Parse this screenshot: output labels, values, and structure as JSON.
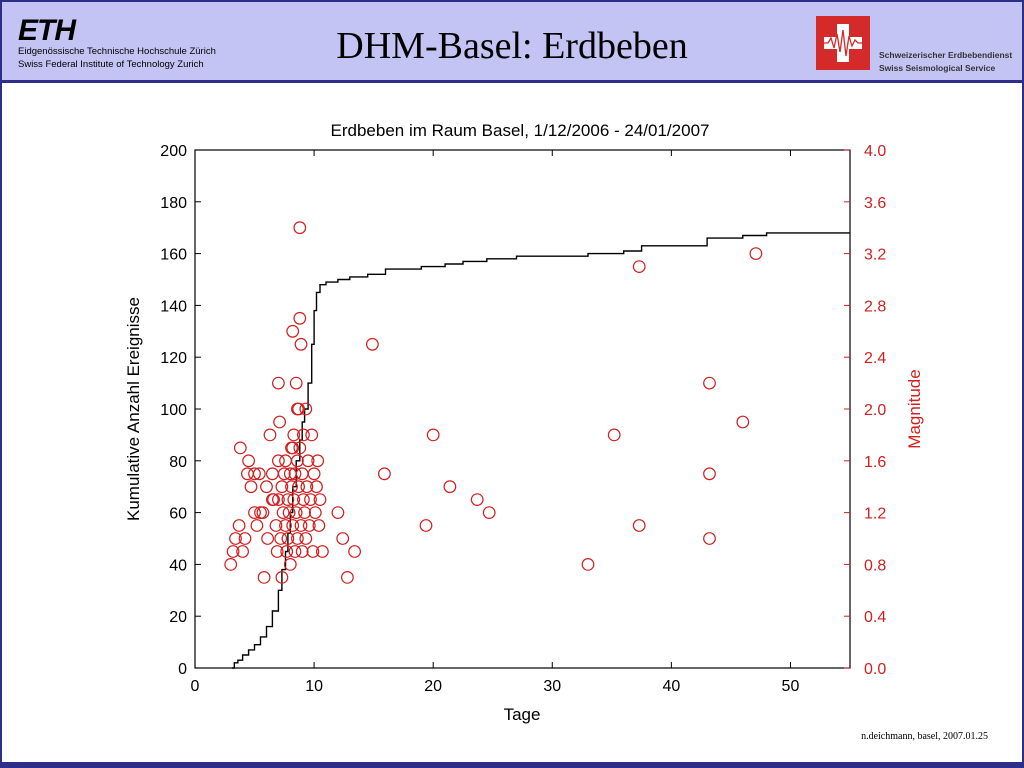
{
  "header": {
    "eth_logo": "ETH",
    "eth_line1": "Eidgenössische Technische Hochschule Zürich",
    "eth_line2": "Swiss Federal Institute of Technology Zurich",
    "title": "DHM-Basel: Erdbeben",
    "sed_line1": "Schweizerischer Erdbebendienst",
    "sed_line2": "Swiss Seismological Service"
  },
  "footer": {
    "text": "n.deichmann, basel, 2007.01.25"
  },
  "colors": {
    "header_bg": "#c4c4f4",
    "border": "#2d2d8a",
    "magnitude": "#d02020",
    "cumulative": "#000000"
  },
  "chart_data": {
    "type": "scatter",
    "title": "Erdbeben im Raum Basel, 1/12/2006 - 24/01/2007",
    "xlabel": "Tage",
    "ylabel": "Kumulative Anzahl Ereignisse",
    "y2label": "Magnitude",
    "xlim": [
      0,
      55
    ],
    "ylim": [
      0,
      200
    ],
    "y2lim": [
      0,
      4
    ],
    "x_ticks": [
      "0",
      "10",
      "20",
      "30",
      "40",
      "50"
    ],
    "y_ticks": [
      "0",
      "20",
      "40",
      "60",
      "80",
      "100",
      "120",
      "140",
      "160",
      "180",
      "200"
    ],
    "y2_ticks": [
      "0.0",
      "0.4",
      "0.8",
      "1.2",
      "1.6",
      "2.0",
      "2.4",
      "2.8",
      "3.2",
      "3.6",
      "4.0"
    ],
    "series": [
      {
        "name": "",
        "kind": "step-line",
        "axis": "left",
        "x": [
          3.1,
          3.3,
          3.6,
          4.0,
          4.5,
          5.0,
          5.5,
          6.0,
          6.5,
          7.0,
          7.3,
          7.6,
          7.8,
          8.0,
          8.2,
          8.5,
          8.8,
          9.0,
          9.2,
          9.5,
          9.8,
          10.0,
          10.2,
          10.5,
          11.0,
          12.0,
          13.0,
          14.5,
          16.0,
          19.0,
          21.0,
          22.5,
          24.5,
          27.0,
          29.0,
          33.0,
          36.0,
          37.5,
          43.0,
          46.0,
          48.0,
          55.0
        ],
        "y": [
          0,
          2,
          3,
          5,
          7,
          9,
          12,
          16,
          22,
          30,
          38,
          45,
          52,
          60,
          70,
          80,
          88,
          95,
          100,
          110,
          125,
          138,
          145,
          148,
          149,
          150,
          151,
          152,
          154,
          155,
          156,
          157,
          158,
          159,
          159,
          160,
          161,
          163,
          166,
          167,
          168,
          168
        ]
      },
      {
        "name": "",
        "kind": "scatter",
        "axis": "right",
        "x": [
          3.0,
          3.2,
          3.4,
          3.7,
          3.8,
          4.0,
          4.2,
          4.4,
          4.5,
          4.7,
          5.0,
          5.2,
          5.4,
          5.5,
          5.7,
          5.8,
          6.0,
          6.1,
          6.3,
          6.5,
          6.6,
          6.8,
          6.9,
          7.0,
          7.0,
          7.1,
          7.2,
          7.3,
          7.3,
          7.4,
          7.5,
          7.6,
          7.6,
          7.7,
          7.8,
          7.8,
          7.9,
          8.0,
          8.0,
          8.1,
          8.1,
          8.2,
          8.2,
          8.3,
          8.3,
          8.4,
          8.4,
          8.5,
          8.5,
          8.6,
          8.6,
          8.7,
          8.7,
          8.8,
          8.8,
          8.9,
          8.9,
          9.0,
          9.0,
          9.1,
          9.1,
          9.2,
          9.3,
          9.4,
          9.5,
          9.6,
          9.7,
          9.8,
          9.9,
          10.0,
          10.1,
          10.2,
          10.3,
          10.4,
          10.5,
          10.7,
          12.0,
          12.4,
          12.8,
          13.4,
          14.9,
          15.9,
          19.4,
          20.0,
          21.4,
          23.7,
          24.7,
          33.0,
          35.2,
          37.3,
          37.3,
          43.2,
          43.2,
          43.2,
          46.0,
          47.1,
          8.8,
          7.0,
          8.2,
          8.6,
          9.3,
          6.5,
          5.0
        ],
        "y": [
          0.8,
          0.9,
          1.0,
          1.1,
          1.7,
          0.9,
          1.0,
          1.5,
          1.6,
          1.4,
          1.2,
          1.1,
          1.5,
          1.2,
          1.2,
          0.7,
          1.4,
          1.0,
          1.8,
          1.5,
          1.3,
          1.1,
          0.9,
          2.2,
          1.3,
          1.9,
          1.0,
          1.4,
          0.7,
          1.2,
          1.5,
          1.6,
          1.1,
          0.9,
          1.3,
          1.0,
          1.2,
          1.5,
          0.8,
          1.7,
          1.4,
          2.6,
          1.1,
          1.8,
          1.3,
          1.5,
          0.9,
          2.2,
          1.2,
          1.6,
          1.0,
          2.0,
          1.4,
          2.7,
          1.7,
          2.5,
          1.1,
          1.5,
          0.9,
          1.3,
          1.8,
          1.2,
          1.0,
          1.4,
          1.6,
          1.1,
          1.3,
          1.8,
          0.9,
          1.5,
          1.2,
          1.4,
          1.6,
          1.1,
          1.3,
          0.9,
          1.2,
          1.0,
          0.7,
          0.9,
          2.5,
          1.5,
          1.1,
          1.8,
          1.4,
          1.3,
          1.2,
          0.8,
          1.8,
          3.1,
          1.1,
          2.2,
          1.5,
          1.0,
          1.9,
          3.2,
          3.4,
          1.6,
          1.7,
          2.0,
          2.0,
          1.3,
          1.5
        ]
      }
    ]
  }
}
